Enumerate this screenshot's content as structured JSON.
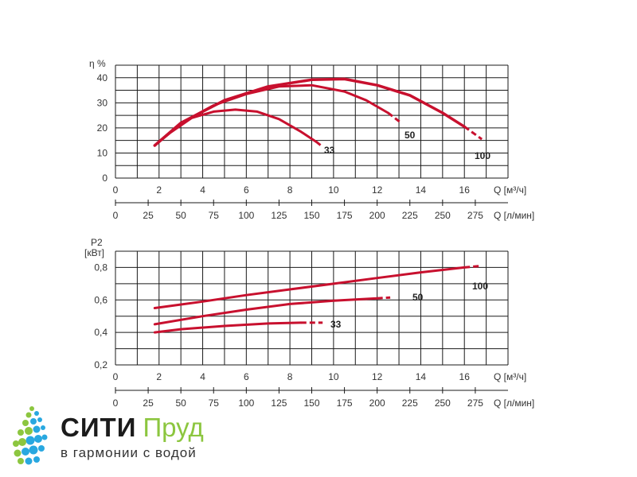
{
  "chart_data": [
    {
      "type": "line",
      "title": "",
      "ylabel": "η %",
      "xlabel": "Q [м³/ч]",
      "xlabel2": "Q [л/мин]",
      "xlim": [
        0,
        18
      ],
      "ylim": [
        0,
        45
      ],
      "xticks": [
        0,
        2,
        4,
        6,
        8,
        10,
        12,
        14,
        16
      ],
      "xticks2": [
        0,
        25,
        50,
        75,
        100,
        125,
        150,
        175,
        200,
        225,
        250,
        275
      ],
      "yticks": [
        "0",
        "10",
        "20",
        "30",
        "40"
      ],
      "yvalues": [
        0,
        10,
        20,
        30,
        40
      ],
      "grid": true,
      "series": [
        {
          "name": "33",
          "x": [
            1.8,
            2.5,
            3.5,
            4.5,
            5.5,
            6.5,
            7.5,
            8.5,
            9.2,
            9.5
          ],
          "y": [
            13,
            18,
            24,
            26.5,
            27.3,
            26.5,
            23.5,
            18.5,
            14.5,
            12.5
          ]
        },
        {
          "name": "50",
          "x": [
            1.8,
            3,
            4.5,
            6,
            7.5,
            9,
            10.5,
            11.5,
            12.5,
            13.1
          ],
          "y": [
            13,
            22,
            29,
            33.5,
            36.5,
            37,
            34.5,
            31,
            26,
            22
          ]
        },
        {
          "name": "100",
          "x": [
            1.8,
            3,
            5,
            7,
            9,
            10.5,
            12,
            13.5,
            15,
            16,
            16.8
          ],
          "y": [
            13,
            22,
            31,
            36.5,
            39.2,
            39.5,
            37,
            33,
            26,
            20.5,
            15.5
          ]
        }
      ],
      "curve_labels": [
        "33",
        "50",
        "100"
      ]
    },
    {
      "type": "line",
      "title": "",
      "ylabel": "P2 [кВт]",
      "ylabel_line1": "P2",
      "ylabel_line2": "[кВт]",
      "xlabel": "Q [м³/ч]",
      "xlabel2": "Q [л/мин]",
      "xlim": [
        0,
        18
      ],
      "ylim": [
        0.2,
        0.9
      ],
      "xticks": [
        0,
        2,
        4,
        6,
        8,
        10,
        12,
        14,
        16
      ],
      "xticks2": [
        0,
        25,
        50,
        75,
        100,
        125,
        150,
        175,
        200,
        225,
        250,
        275
      ],
      "yticks": [
        "0,2",
        "0,4",
        "0,6",
        "0,8"
      ],
      "yvalues": [
        0.2,
        0.4,
        0.6,
        0.8
      ],
      "grid": true,
      "series": [
        {
          "name": "33",
          "x": [
            1.8,
            3,
            5,
            7,
            8.5,
            9.5
          ],
          "y": [
            0.4,
            0.42,
            0.44,
            0.455,
            0.46,
            0.46
          ]
        },
        {
          "name": "50",
          "x": [
            1.8,
            4,
            6,
            8,
            10,
            12,
            12.6
          ],
          "y": [
            0.45,
            0.5,
            0.54,
            0.575,
            0.595,
            0.61,
            0.615
          ]
        },
        {
          "name": "100",
          "x": [
            1.8,
            4,
            6,
            8,
            10,
            12,
            14,
            16,
            16.8
          ],
          "y": [
            0.55,
            0.59,
            0.63,
            0.665,
            0.7,
            0.735,
            0.77,
            0.8,
            0.81
          ]
        }
      ],
      "curve_labels": [
        "33",
        "50",
        "100"
      ]
    }
  ],
  "logo": {
    "brand_main": "СИТИ",
    "brand_accent": "Пруд",
    "slogan": "в гармонии с водой"
  },
  "colors": {
    "curve": "#c8102e",
    "grid": "#1a1a1a",
    "brand_dark": "#1b1b1b",
    "brand_green": "#8cc63f",
    "dots_green": "#8cc63f",
    "dots_blue": "#29a8e0"
  }
}
